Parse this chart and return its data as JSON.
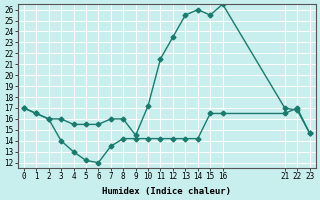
{
  "xlabel": "Humidex (Indice chaleur)",
  "ylabel": "",
  "xlim": [
    -0.5,
    23.5
  ],
  "ylim": [
    11.5,
    26.5
  ],
  "xticks": [
    0,
    1,
    2,
    3,
    4,
    5,
    6,
    7,
    8,
    9,
    10,
    11,
    12,
    13,
    14,
    15,
    16,
    21,
    22,
    23
  ],
  "yticks": [
    12,
    13,
    14,
    15,
    16,
    17,
    18,
    19,
    20,
    21,
    22,
    23,
    24,
    25,
    26
  ],
  "bg_color": "#c8eeed",
  "grid_color": "#ffffff",
  "line_color": "#1a7a6e",
  "line1_x": [
    0,
    1,
    2,
    3,
    4,
    5,
    6,
    7,
    8,
    9,
    10,
    11,
    12,
    13,
    14,
    15,
    16,
    21,
    22,
    23
  ],
  "line1_y": [
    17.0,
    16.5,
    16.0,
    14.0,
    13.0,
    12.2,
    12.0,
    13.5,
    14.2,
    14.2,
    14.2,
    14.2,
    14.2,
    14.2,
    14.2,
    16.5,
    16.5,
    16.5,
    17.0,
    14.7
  ],
  "line2_x": [
    0,
    1,
    2,
    3,
    4,
    5,
    6,
    7,
    8,
    9,
    10,
    11,
    12,
    13,
    14,
    15,
    16,
    21,
    22,
    23
  ],
  "line2_y": [
    17.0,
    16.5,
    16.0,
    16.0,
    15.5,
    15.5,
    15.5,
    16.0,
    16.0,
    14.5,
    17.2,
    21.5,
    23.5,
    25.5,
    26.0,
    25.5,
    26.5,
    17.0,
    16.8,
    14.7
  ]
}
